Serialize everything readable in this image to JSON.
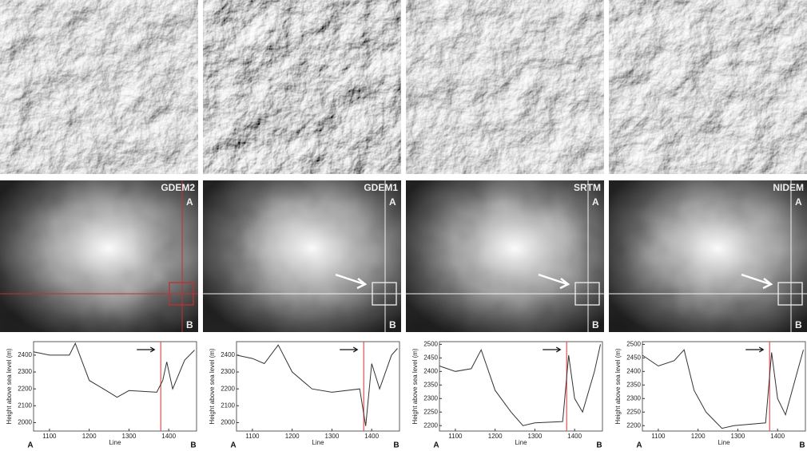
{
  "dem_panels": [
    {
      "title": "GDEM2",
      "top_label": "A",
      "bottom_label": "B",
      "crosshair_color": "#c03030"
    },
    {
      "title": "GDEM1",
      "top_label": "A",
      "bottom_label": "B",
      "crosshair_color": "#f0f0f0"
    },
    {
      "title": "SRTM",
      "top_label": "A",
      "bottom_label": "B",
      "crosshair_color": "#f0f0f0"
    },
    {
      "title": "NIDEM",
      "top_label": "A",
      "bottom_label": "B",
      "crosshair_color": "#f0f0f0"
    }
  ],
  "chart_data": [
    {
      "type": "line",
      "ylabel": "Height above sea level (m)",
      "xlabel": "Line",
      "start_label": "A",
      "end_label": "B",
      "x": [
        1060,
        1100,
        1150,
        1165,
        1200,
        1250,
        1270,
        1300,
        1370,
        1385,
        1395,
        1410,
        1440,
        1465
      ],
      "values": [
        2420,
        2400,
        2400,
        2470,
        2250,
        2180,
        2150,
        2190,
        2180,
        2250,
        2360,
        2200,
        2370,
        2430
      ],
      "color": "#333333",
      "marker_x": 1380,
      "marker_color": "#e05050",
      "xlim": [
        1060,
        1470
      ],
      "xticks": [
        1100,
        1200,
        1300,
        1400
      ],
      "ylim": [
        1950,
        2480
      ],
      "yticks": [
        2000,
        2100,
        2200,
        2300,
        2400
      ]
    },
    {
      "type": "line",
      "ylabel": "Height above sea level (m)",
      "xlabel": "Line",
      "start_label": "A",
      "end_label": "B",
      "x": [
        1060,
        1100,
        1130,
        1165,
        1200,
        1250,
        1300,
        1370,
        1385,
        1400,
        1420,
        1450,
        1465
      ],
      "values": [
        2400,
        2380,
        2350,
        2460,
        2300,
        2200,
        2180,
        2200,
        1980,
        2350,
        2200,
        2400,
        2440
      ],
      "color": "#333333",
      "marker_x": 1380,
      "marker_color": "#e05050",
      "xlim": [
        1060,
        1470
      ],
      "xticks": [
        1100,
        1200,
        1300,
        1400
      ],
      "ylim": [
        1950,
        2480
      ],
      "yticks": [
        2000,
        2100,
        2200,
        2300,
        2400
      ]
    },
    {
      "type": "line",
      "ylabel": "Height above sea level (m)",
      "xlabel": "Line",
      "start_label": "A",
      "end_label": "B",
      "x": [
        1060,
        1100,
        1140,
        1165,
        1200,
        1240,
        1270,
        1300,
        1370,
        1385,
        1400,
        1420,
        1450,
        1465
      ],
      "values": [
        2420,
        2400,
        2410,
        2480,
        2330,
        2250,
        2200,
        2210,
        2215,
        2460,
        2300,
        2250,
        2400,
        2500
      ],
      "color": "#333333",
      "marker_x": 1380,
      "marker_color": "#e05050",
      "xlim": [
        1060,
        1470
      ],
      "xticks": [
        1100,
        1200,
        1300,
        1400
      ],
      "ylim": [
        2180,
        2510
      ],
      "yticks": [
        2200,
        2250,
        2300,
        2350,
        2400,
        2450,
        2500
      ]
    },
    {
      "type": "line",
      "ylabel": "Height above sea level (m)",
      "xlabel": "Line",
      "start_label": "A",
      "end_label": "B",
      "x": [
        1060,
        1100,
        1140,
        1165,
        1190,
        1220,
        1260,
        1290,
        1370,
        1385,
        1400,
        1420,
        1450,
        1465
      ],
      "values": [
        2460,
        2420,
        2440,
        2480,
        2330,
        2250,
        2190,
        2200,
        2210,
        2470,
        2300,
        2240,
        2400,
        2480
      ],
      "color": "#333333",
      "marker_x": 1380,
      "marker_color": "#e05050",
      "xlim": [
        1060,
        1470
      ],
      "xticks": [
        1100,
        1200,
        1300,
        1400
      ],
      "ylim": [
        2180,
        2510
      ],
      "yticks": [
        2200,
        2250,
        2300,
        2350,
        2400,
        2450,
        2500
      ]
    }
  ]
}
